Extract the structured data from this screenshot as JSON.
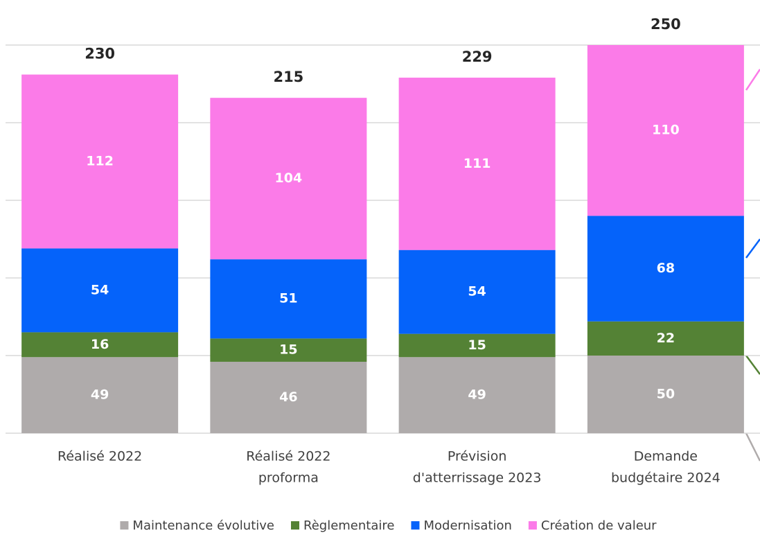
{
  "chart_data": {
    "type": "stacked_bar",
    "categories": [
      [
        "Réalisé 2022"
      ],
      [
        "Réalisé 2022",
        "proforma"
      ],
      [
        "Prévision",
        "d'atterrissage 2023"
      ],
      [
        "Demande",
        "budgétaire 2024"
      ]
    ],
    "series": [
      {
        "name": "Maintenance évolutive",
        "color": "#afabab",
        "values": [
          49,
          46,
          49,
          50
        ]
      },
      {
        "name": "Règlementaire",
        "color": "#548235",
        "values": [
          16,
          15,
          15,
          22
        ]
      },
      {
        "name": "Modernisation",
        "color": "#0563fa",
        "values": [
          54,
          51,
          54,
          68
        ]
      },
      {
        "name": "Création de valeur",
        "color": "#fb7be8",
        "values": [
          112,
          104,
          111,
          110
        ]
      }
    ],
    "totals": [
      230,
      215,
      229,
      250
    ],
    "ylim": [
      0,
      250
    ],
    "yticks": [
      0,
      50,
      100,
      150,
      200,
      250
    ],
    "grid": true
  }
}
